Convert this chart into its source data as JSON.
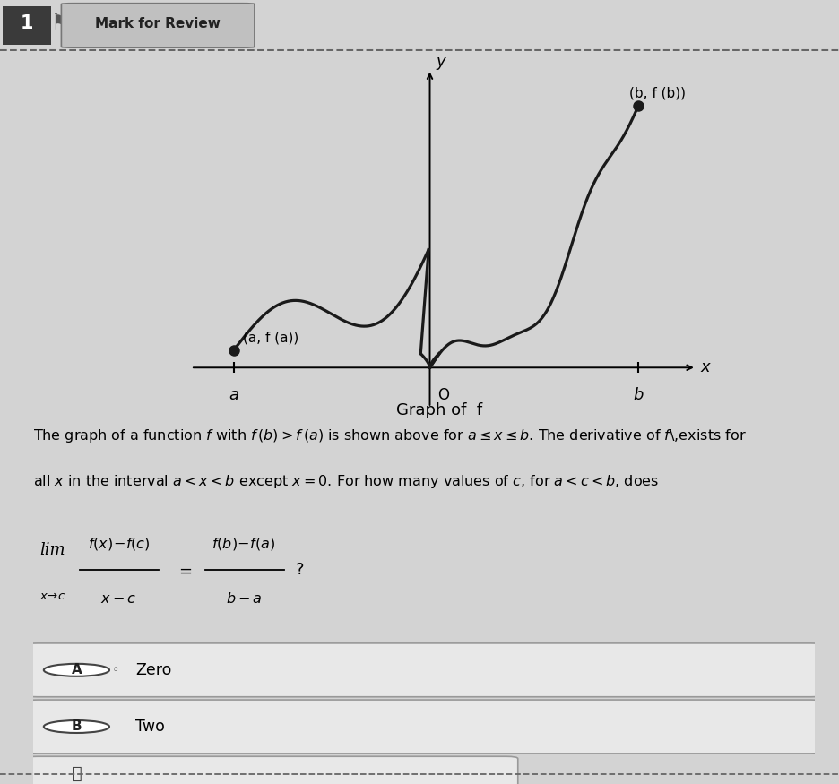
{
  "background_color": "#d3d3d3",
  "header_bg": "#d3d3d3",
  "graph_bg": "#c8c8c8",
  "question_number": "1",
  "header_text": "Mark for Review",
  "graph_title": "Graph of  f",
  "x_label": "x",
  "y_label": "y",
  "point_a_label": "(a, f (a))",
  "point_b_label": "(b, f (b))",
  "axis_label_a": "a",
  "axis_label_b": "b",
  "axis_label_o": "O",
  "line1": "The graph of a function $f$ with $f\\,(b) > f\\,(a)$ is shown above for $a \\leq x \\leq b$. The derivative of $f$\\,exists for",
  "line2": "all $x$ in the interval $a < x < b$ except $x = 0$. For how many values of $c$, for $a < c < b$, does",
  "answer_A": "Zero",
  "answer_B": "Two",
  "curve_color": "#1a1a1a",
  "dot_color": "#1a1a1a",
  "box_fill": "#e8e8e8",
  "box_edge": "#888888",
  "answer_box_fill": "#e8e8e8"
}
